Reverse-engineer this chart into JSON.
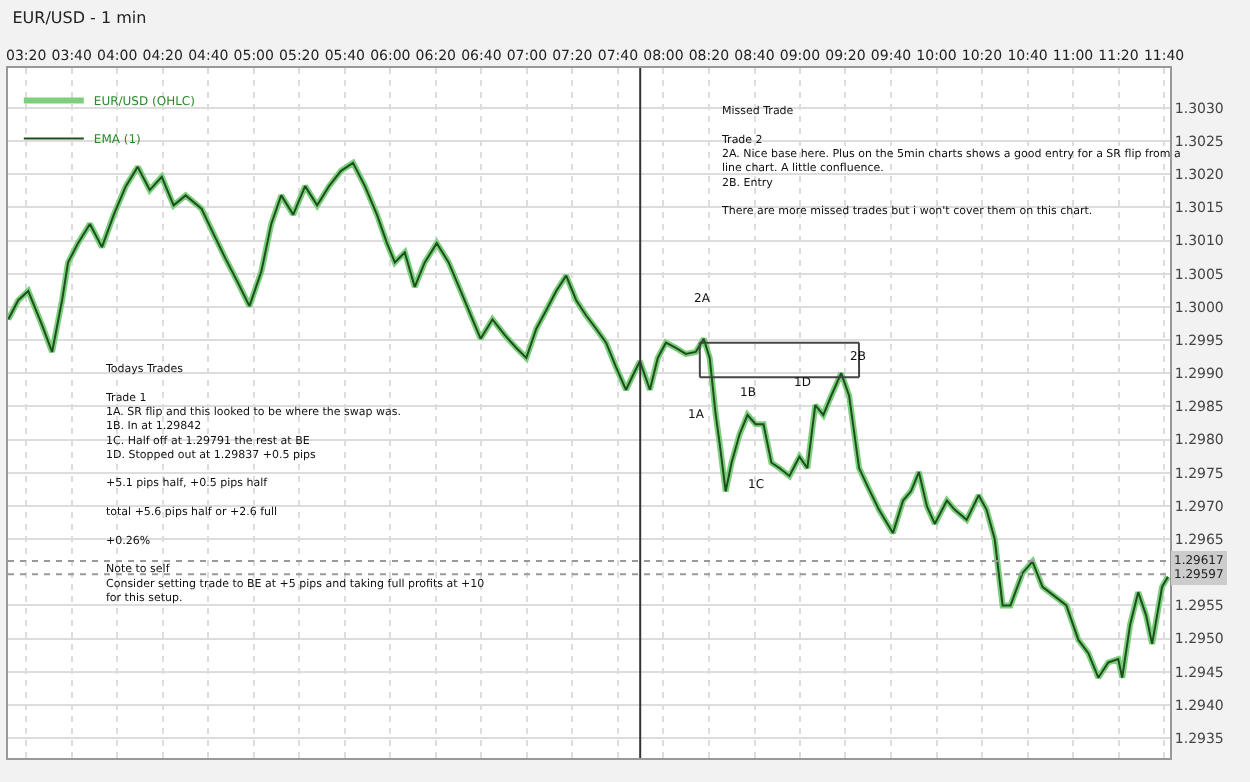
{
  "chart_data": {
    "type": "line",
    "title": "EUR/USD - 1 min",
    "x": [
      3.202,
      3.275,
      3.348,
      3.45,
      3.523,
      3.596,
      3.64,
      3.713,
      3.8,
      3.888,
      3.975,
      4.063,
      4.15,
      4.238,
      4.326,
      4.413,
      4.501,
      4.617,
      4.705,
      4.792,
      4.88,
      4.968,
      5.055,
      5.128,
      5.201,
      5.289,
      5.376,
      5.464,
      5.551,
      5.639,
      5.727,
      5.814,
      5.902,
      5.975,
      6.033,
      6.106,
      6.179,
      6.252,
      6.34,
      6.427,
      6.515,
      6.602,
      6.661,
      6.748,
      6.836,
      6.923,
      6.996,
      7.069,
      7.142,
      7.215,
      7.288,
      7.361,
      7.434,
      7.507,
      7.58,
      7.653,
      7.726,
      7.784,
      7.828,
      7.901,
      7.959,
      8.018,
      8.091,
      8.164,
      8.237,
      8.295,
      8.339,
      8.383,
      8.412,
      8.456,
      8.499,
      8.558,
      8.616,
      8.675,
      8.733,
      8.791,
      8.85,
      8.923,
      8.996,
      9.054,
      9.112,
      9.171,
      9.229,
      9.302,
      9.36,
      9.433,
      9.492,
      9.579,
      9.681,
      9.755,
      9.813,
      9.871,
      9.93,
      9.988,
      10.076,
      10.134,
      10.221,
      10.309,
      10.367,
      10.426,
      10.484,
      10.542,
      10.63,
      10.703,
      10.776,
      10.864,
      10.951,
      11.039,
      11.112,
      11.185,
      11.258,
      11.331,
      11.36,
      11.418,
      11.477,
      11.535,
      11.579,
      11.652,
      11.695
    ],
    "series": [
      {
        "name": "EUR/USD (OHLC)",
        "color": "#7ccf7c",
        "values": [
          1.29981,
          1.3001,
          1.30024,
          1.29972,
          1.29932,
          1.3001,
          1.30067,
          1.30096,
          1.30125,
          1.3009,
          1.30139,
          1.30182,
          1.30211,
          1.30176,
          1.30196,
          1.30153,
          1.30168,
          1.30148,
          1.3011,
          1.30073,
          1.30038,
          1.30001,
          1.30053,
          1.30125,
          1.30168,
          1.30139,
          1.30182,
          1.30153,
          1.30182,
          1.30205,
          1.30217,
          1.30182,
          1.30139,
          1.30096,
          1.30067,
          1.30082,
          1.3003,
          1.30067,
          1.30096,
          1.30067,
          1.30024,
          1.29981,
          1.29952,
          1.29981,
          1.29958,
          1.29938,
          1.29923,
          1.29967,
          1.29995,
          1.30024,
          1.30047,
          1.3001,
          1.29987,
          1.29967,
          1.29946,
          1.29909,
          1.29875,
          1.299,
          1.29918,
          1.29875,
          1.29923,
          1.29946,
          1.29938,
          1.29929,
          1.29932,
          1.29952,
          1.29923,
          1.29837,
          1.29794,
          1.29722,
          1.29765,
          1.29808,
          1.29837,
          1.29823,
          1.29823,
          1.29765,
          1.29757,
          1.29745,
          1.29774,
          1.29757,
          1.29852,
          1.29837,
          1.29866,
          1.299,
          1.29866,
          1.29757,
          1.29731,
          1.29694,
          1.29659,
          1.29708,
          1.29722,
          1.29751,
          1.29699,
          1.29673,
          1.29708,
          1.29694,
          1.29679,
          1.29716,
          1.29694,
          1.2965,
          1.2955,
          1.2955,
          1.29599,
          1.29616,
          1.29578,
          1.29564,
          1.2955,
          1.29498,
          1.29478,
          1.29441,
          1.29464,
          1.29469,
          1.29441,
          1.29521,
          1.2957,
          1.29535,
          1.29492,
          1.29578,
          1.29593
        ]
      },
      {
        "name": "EMA (1)",
        "color": "#1e4d1e",
        "values": [
          1.29981,
          1.3001,
          1.30024,
          1.29972,
          1.29932,
          1.3001,
          1.30067,
          1.30096,
          1.30125,
          1.3009,
          1.30139,
          1.30182,
          1.30211,
          1.30176,
          1.30196,
          1.30153,
          1.30168,
          1.30148,
          1.3011,
          1.30073,
          1.30038,
          1.30001,
          1.30053,
          1.30125,
          1.30168,
          1.30139,
          1.30182,
          1.30153,
          1.30182,
          1.30205,
          1.30217,
          1.30182,
          1.30139,
          1.30096,
          1.30067,
          1.30082,
          1.3003,
          1.30067,
          1.30096,
          1.30067,
          1.30024,
          1.29981,
          1.29952,
          1.29981,
          1.29958,
          1.29938,
          1.29923,
          1.29967,
          1.29995,
          1.30024,
          1.30047,
          1.3001,
          1.29987,
          1.29967,
          1.29946,
          1.29909,
          1.29875,
          1.299,
          1.29918,
          1.29875,
          1.29923,
          1.29946,
          1.29938,
          1.29929,
          1.29932,
          1.29952,
          1.29923,
          1.29837,
          1.29794,
          1.29722,
          1.29765,
          1.29808,
          1.29837,
          1.29823,
          1.29823,
          1.29765,
          1.29757,
          1.29745,
          1.29774,
          1.29757,
          1.29852,
          1.29837,
          1.29866,
          1.299,
          1.29866,
          1.29757,
          1.29731,
          1.29694,
          1.29659,
          1.29708,
          1.29722,
          1.29751,
          1.29699,
          1.29673,
          1.29708,
          1.29694,
          1.29679,
          1.29716,
          1.29694,
          1.2965,
          1.2955,
          1.2955,
          1.29599,
          1.29616,
          1.29578,
          1.29564,
          1.2955,
          1.29498,
          1.29478,
          1.29441,
          1.29464,
          1.29469,
          1.29441,
          1.29521,
          1.2957,
          1.29535,
          1.29492,
          1.29578,
          1.29593
        ]
      },
      {
        "type": "line",
        "color": "#444444",
        "x": [
          8.266,
          9.433
        ],
        "values": [
          1.29946,
          1.29946
        ]
      },
      {
        "type": "line",
        "color": "#444444",
        "x": [
          8.266,
          9.433
        ],
        "values": [
          1.29894,
          1.29894
        ]
      },
      {
        "type": "line",
        "color": "#444444",
        "x": [
          8.266,
          8.267
        ],
        "values": [
          1.29946,
          1.29894
        ]
      },
      {
        "type": "line",
        "color": "#444444",
        "x": [
          9.432,
          9.433
        ],
        "values": [
          1.29946,
          1.29894
        ]
      }
    ],
    "xlim": [
      3.2,
      11.71
    ],
    "ylim": [
      1.2932,
      1.3036
    ],
    "xticks": [
      {
        "value": 3.333,
        "label": "03:20"
      },
      {
        "value": 3.667,
        "label": "03:40"
      },
      {
        "value": 4,
        "label": "04:00"
      },
      {
        "value": 4.333,
        "label": "04:20"
      },
      {
        "value": 4.667,
        "label": "04:40"
      },
      {
        "value": 5,
        "label": "05:00"
      },
      {
        "value": 5.333,
        "label": "05:20"
      },
      {
        "value": 5.667,
        "label": "05:40"
      },
      {
        "value": 6,
        "label": "06:00"
      },
      {
        "value": 6.333,
        "label": "06:20"
      },
      {
        "value": 6.667,
        "label": "06:40"
      },
      {
        "value": 7,
        "label": "07:00"
      },
      {
        "value": 7.333,
        "label": "07:20"
      },
      {
        "value": 7.667,
        "label": "07:40"
      },
      {
        "value": 8,
        "label": "08:00"
      },
      {
        "value": 8.333,
        "label": "08:20"
      },
      {
        "value": 8.667,
        "label": "08:40"
      },
      {
        "value": 9,
        "label": "09:00"
      },
      {
        "value": 9.333,
        "label": "09:20"
      },
      {
        "value": 9.667,
        "label": "09:40"
      },
      {
        "value": 10,
        "label": "10:00"
      },
      {
        "value": 10.333,
        "label": "10:20"
      },
      {
        "value": 10.667,
        "label": "10:40"
      },
      {
        "value": 11,
        "label": "11:00"
      },
      {
        "value": 11.333,
        "label": "11:20"
      },
      {
        "value": 11.667,
        "label": "11:40"
      }
    ],
    "yticks": [
      {
        "value": 1.2935,
        "label": "1.2935"
      },
      {
        "value": 1.294,
        "label": "1.2940"
      },
      {
        "value": 1.2945,
        "label": "1.2945"
      },
      {
        "value": 1.295,
        "label": "1.2950"
      },
      {
        "value": 1.2955,
        "label": "1.2955"
      },
      {
        "value": 1.2965,
        "label": "1.2965"
      },
      {
        "value": 1.297,
        "label": "1.2970"
      },
      {
        "value": 1.2975,
        "label": "1.2975"
      },
      {
        "value": 1.298,
        "label": "1.2980"
      },
      {
        "value": 1.2985,
        "label": "1.2985"
      },
      {
        "value": 1.299,
        "label": "1.2990"
      },
      {
        "value": 1.2995,
        "label": "1.2995"
      },
      {
        "value": 1.3,
        "label": "1.3000"
      },
      {
        "value": 1.3005,
        "label": "1.3005"
      },
      {
        "value": 1.301,
        "label": "1.3010"
      },
      {
        "value": 1.3015,
        "label": "1.3015"
      },
      {
        "value": 1.302,
        "label": "1.3020"
      },
      {
        "value": 1.3025,
        "label": "1.3025"
      },
      {
        "value": 1.303,
        "label": "1.3030"
      }
    ],
    "grid": true,
    "legend": "top left",
    "ref_lines": [
      {
        "axis": "x",
        "value": 7.83,
        "color": "#333333"
      },
      {
        "axis": "y",
        "value": 1.29617,
        "label": "1.29617",
        "color": "#999999",
        "line_style": "dotted"
      },
      {
        "axis": "y",
        "value": 1.29597,
        "label": "1.29597",
        "color": "#999999",
        "line_style": "dotted"
      }
    ],
    "annotations": [
      "Todays Trades\n\nTrade 1\n1A. SR flip and this looked to be where the swap was.\n1B. In at 1.29842\n1C. Half off at 1.29791 the rest at BE\n1D. Stopped out at 1.29837 +0.5 pips\n\n+5.1 pips half, +0.5 pips half\n\ntotal +5.6 pips half or +2.6 full\n\n+0.26%\n\nNote to self\nConsider setting trade to BE at +5 pips and taking full profits at +10\nfor this setup.",
      "Missed Trade\n\nTrade 2\n2A. Nice base here. Plus on the 5min charts shows a good entry for a SR flip from a\nline chart. A little confluence.\n2B. Entry\n\nThere are more missed trades but i won't cover them on this chart.",
      {
        "text": "1A",
        "x": 8.383,
        "y": 1.29837
      },
      {
        "text": "1B",
        "x": 8.616,
        "y": 1.29837
      },
      {
        "text": "1C",
        "x": 8.791,
        "y": 1.29765
      },
      {
        "text": "1D",
        "x": 9.112,
        "y": 1.29852
      },
      {
        "text": "2A",
        "x": 8.295,
        "y": 1.29952
      },
      {
        "text": "2B",
        "x": 9.302,
        "y": 1.299
      }
    ]
  }
}
